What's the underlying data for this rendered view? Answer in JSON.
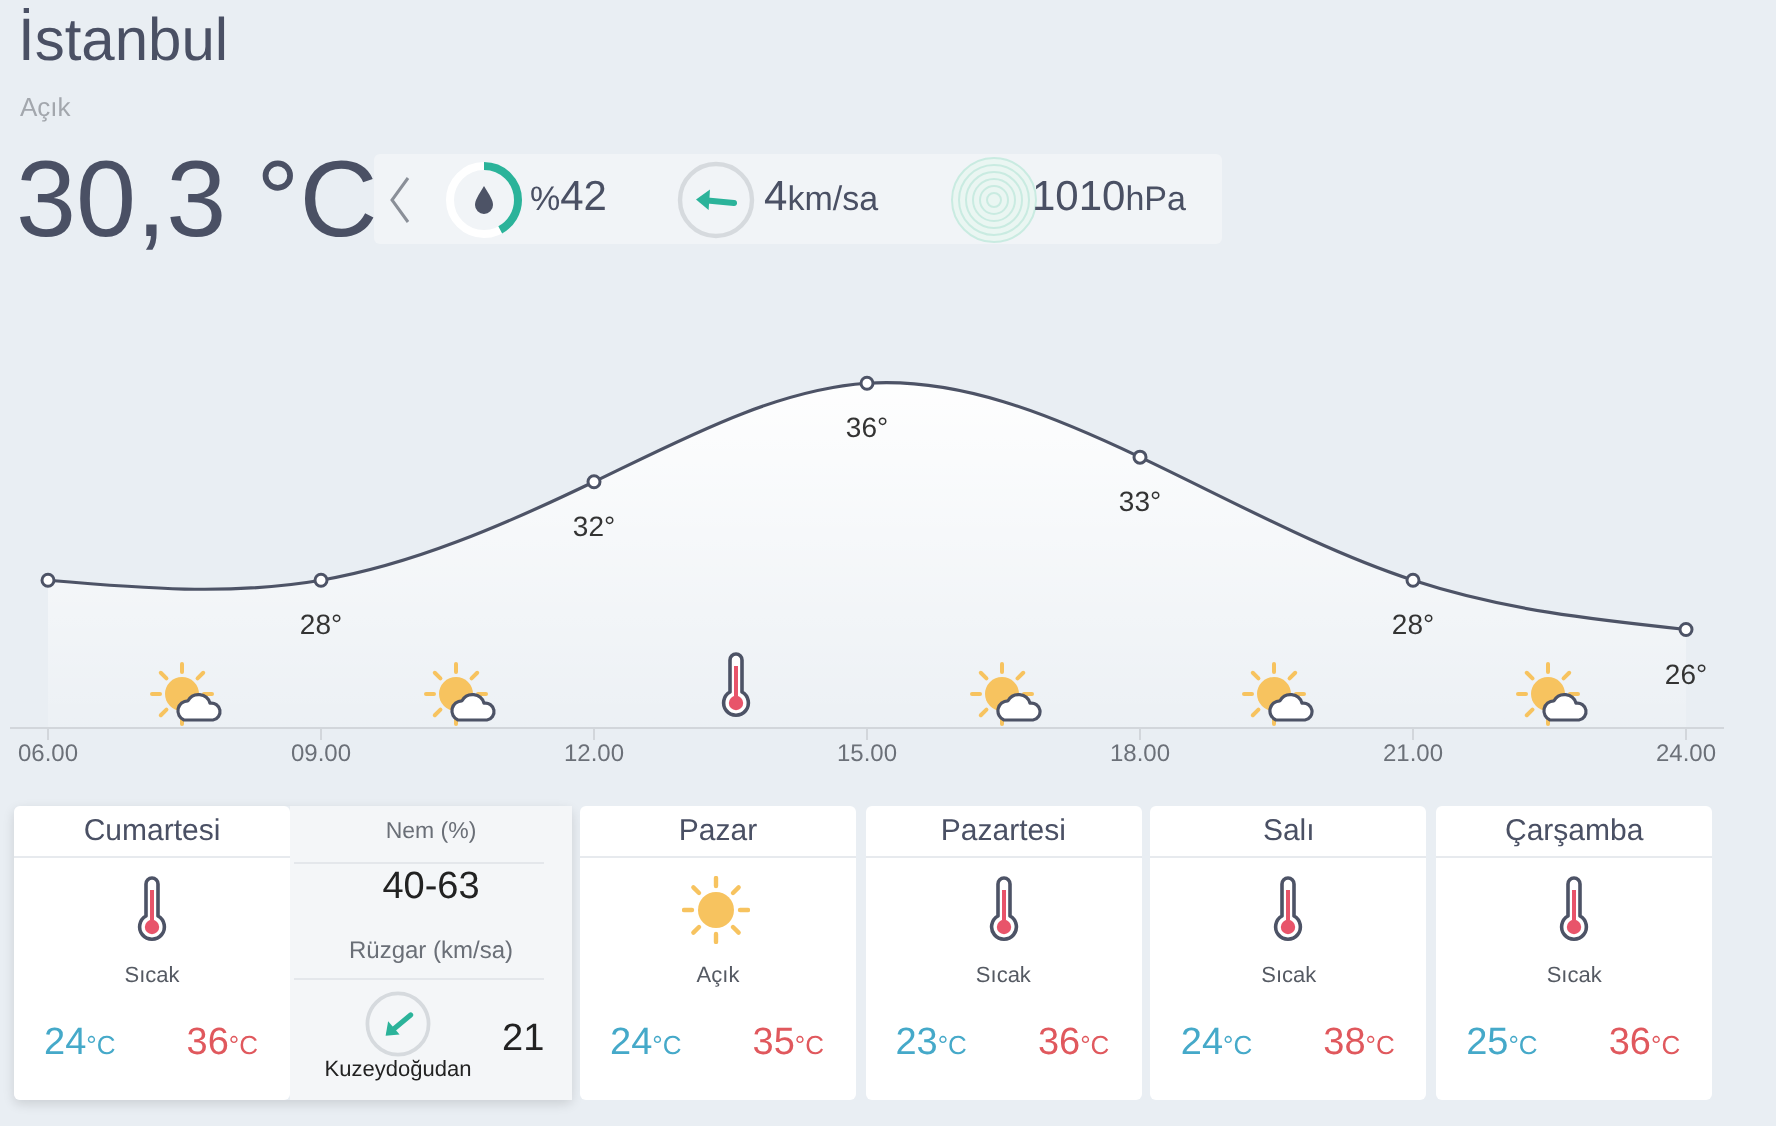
{
  "chart_data": [
    {
      "type": "other",
      "title": "İstanbul",
      "subtitle": "Açık",
      "annotations": [
        "30,3 °C",
        "%42",
        "4km/sa",
        "1010hPa"
      ]
    },
    {
      "type": "area",
      "categories": [
        "06.00",
        "09.00",
        "12.00",
        "15.00",
        "18.00",
        "21.00",
        "24.00"
      ],
      "values": [
        28,
        28,
        32,
        36,
        33,
        28,
        26
      ],
      "color": "#4d5366",
      "value_labels": [
        null,
        "28°",
        "32°",
        "36°",
        "33°",
        "28°",
        "26°"
      ],
      "tick_labels": "x",
      "marker": "circle"
    },
    {
      "type": "other",
      "annotations": [
        "Cumartesi",
        "Sıcak",
        "24°C",
        "36°C",
        "Pazar",
        "Açık",
        "24°C",
        "35°C",
        "Pazartesi",
        "Sıcak",
        "23°C",
        "36°C",
        "Salı",
        "Sıcak",
        "24°C",
        "38°C",
        "Çarşamba",
        "Sıcak",
        "25°C",
        "36°C",
        "Nem (%)",
        "40-63",
        "Rüzgar (km/sa)",
        "Kuzeydoğudan",
        "21"
      ]
    }
  ]
}
